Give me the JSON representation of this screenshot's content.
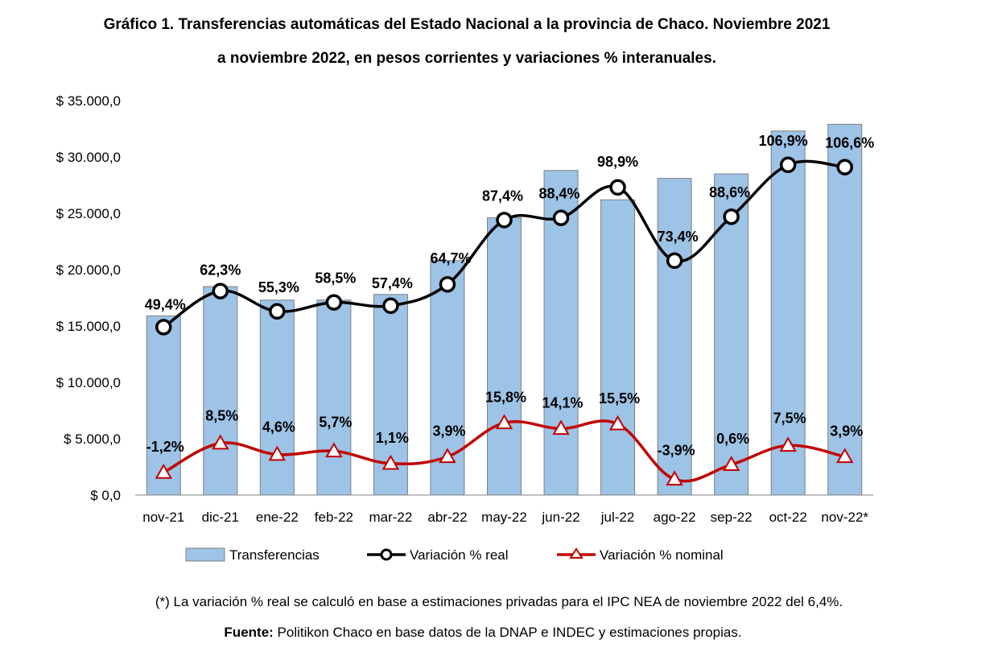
{
  "header": {
    "title_line1": "Gráfico 1. Transferencias automáticas del Estado Nacional a la provincia de Chaco. Noviembre 2021",
    "title_line2": "a noviembre 2022, en pesos corrientes y variaciones % interanuales."
  },
  "chart_data": {
    "type": "bar",
    "categories": [
      "nov-21",
      "dic-21",
      "ene-22",
      "feb-22",
      "mar-22",
      "abr-22",
      "may-22",
      "jun-22",
      "jul-22",
      "ago-22",
      "sep-22",
      "oct-22",
      "nov-22*"
    ],
    "ylim": [
      0,
      35000
    ],
    "yticks": [
      0,
      5000,
      10000,
      15000,
      20000,
      25000,
      30000,
      35000
    ],
    "ytick_labels": [
      "$ 0,0",
      "$ 5.000,0",
      "$ 10.000,0",
      "$ 15.000,0",
      "$ 20.000,0",
      "$ 25.000,0",
      "$ 30.000,0",
      "$ 35.000,0"
    ],
    "grid": false,
    "legend_position": "bottom",
    "series": [
      {
        "name": "Transferencias",
        "kind": "bar",
        "color": "#9dc3e6",
        "values": [
          15900,
          18500,
          17300,
          17300,
          17800,
          20800,
          24600,
          28800,
          26200,
          28100,
          28500,
          32300,
          32900
        ]
      },
      {
        "name": "Variación % real",
        "kind": "line",
        "color": "#000000",
        "marker": "circle",
        "labels": [
          "49,4%",
          "62,3%",
          "55,3%",
          "58,5%",
          "57,4%",
          "64,7%",
          "87,4%",
          "88,4%",
          "98,9%",
          "73,4%",
          "88,6%",
          "106,9%",
          "106,6%"
        ],
        "plot_values": [
          14900,
          18100,
          16300,
          17100,
          16800,
          18700,
          24400,
          24600,
          27300,
          20800,
          24700,
          29300,
          29100
        ]
      },
      {
        "name": "Variación % nominal",
        "kind": "line",
        "color": "#c00000",
        "marker": "triangle",
        "labels": [
          "-1,2%",
          "8,5%",
          "4,6%",
          "5,7%",
          "1,1%",
          "3,9%",
          "15,8%",
          "14,1%",
          "15,5%",
          "-3,9%",
          "0,6%",
          "7,5%",
          "3,9%"
        ],
        "plot_values": [
          2000,
          4600,
          3600,
          3900,
          2800,
          3400,
          6400,
          5900,
          6300,
          1400,
          2700,
          4400,
          3400
        ]
      }
    ]
  },
  "footer": {
    "footnote": "(*) La variación % real se calculó en base a estimaciones privadas para el IPC NEA de noviembre 2022 del 6,4%.",
    "source_label": "Fuente:",
    "source_text": " Politikon Chaco en base datos de la DNAP e INDEC y estimaciones propias."
  }
}
